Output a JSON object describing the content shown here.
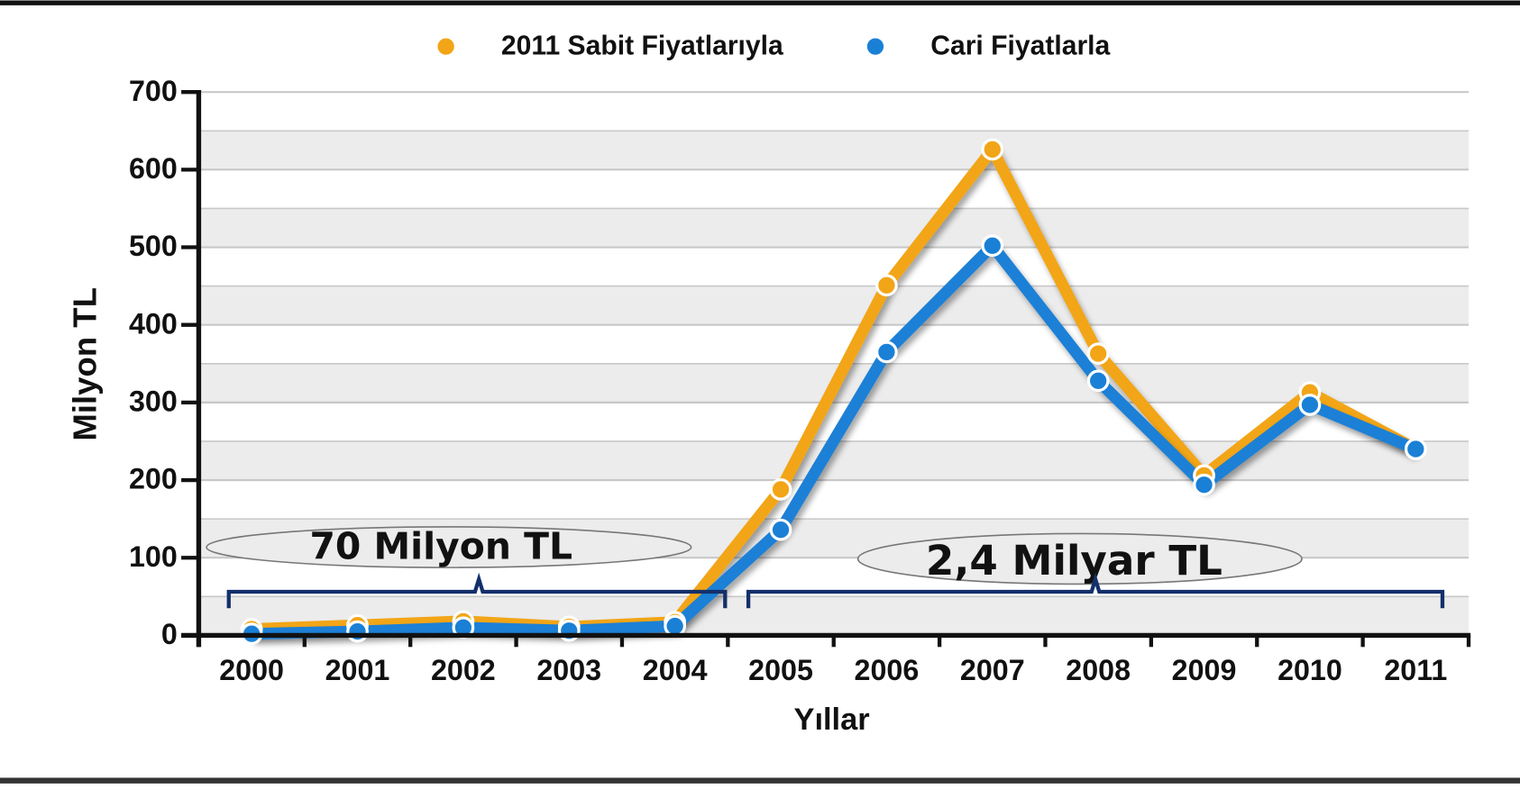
{
  "chart_data": {
    "type": "line",
    "x_label": "Yıllar",
    "y_label": "Milyon TL",
    "categories": [
      "2000",
      "2001",
      "2002",
      "2003",
      "2004",
      "2005",
      "2006",
      "2007",
      "2008",
      "2009",
      "2010",
      "2011"
    ],
    "series": [
      {
        "name": "2011 Sabit Fiyatlarıyla",
        "color": "#f2a516",
        "values": [
          8,
          13,
          18,
          11,
          17,
          188,
          451,
          626,
          363,
          206,
          313,
          240
        ]
      },
      {
        "name": "Cari Fiyatlarla",
        "color": "#1a80d6",
        "values": [
          2,
          5,
          10,
          6,
          12,
          136,
          365,
          502,
          328,
          194,
          297,
          240
        ]
      }
    ],
    "ylim": [
      0,
      700
    ],
    "yticks": [
      0,
      100,
      200,
      300,
      400,
      500,
      600,
      700
    ],
    "grid": true,
    "legend": "top",
    "annotations": [
      "70 Milyon TL",
      "2,4 Milyar TL"
    ]
  }
}
